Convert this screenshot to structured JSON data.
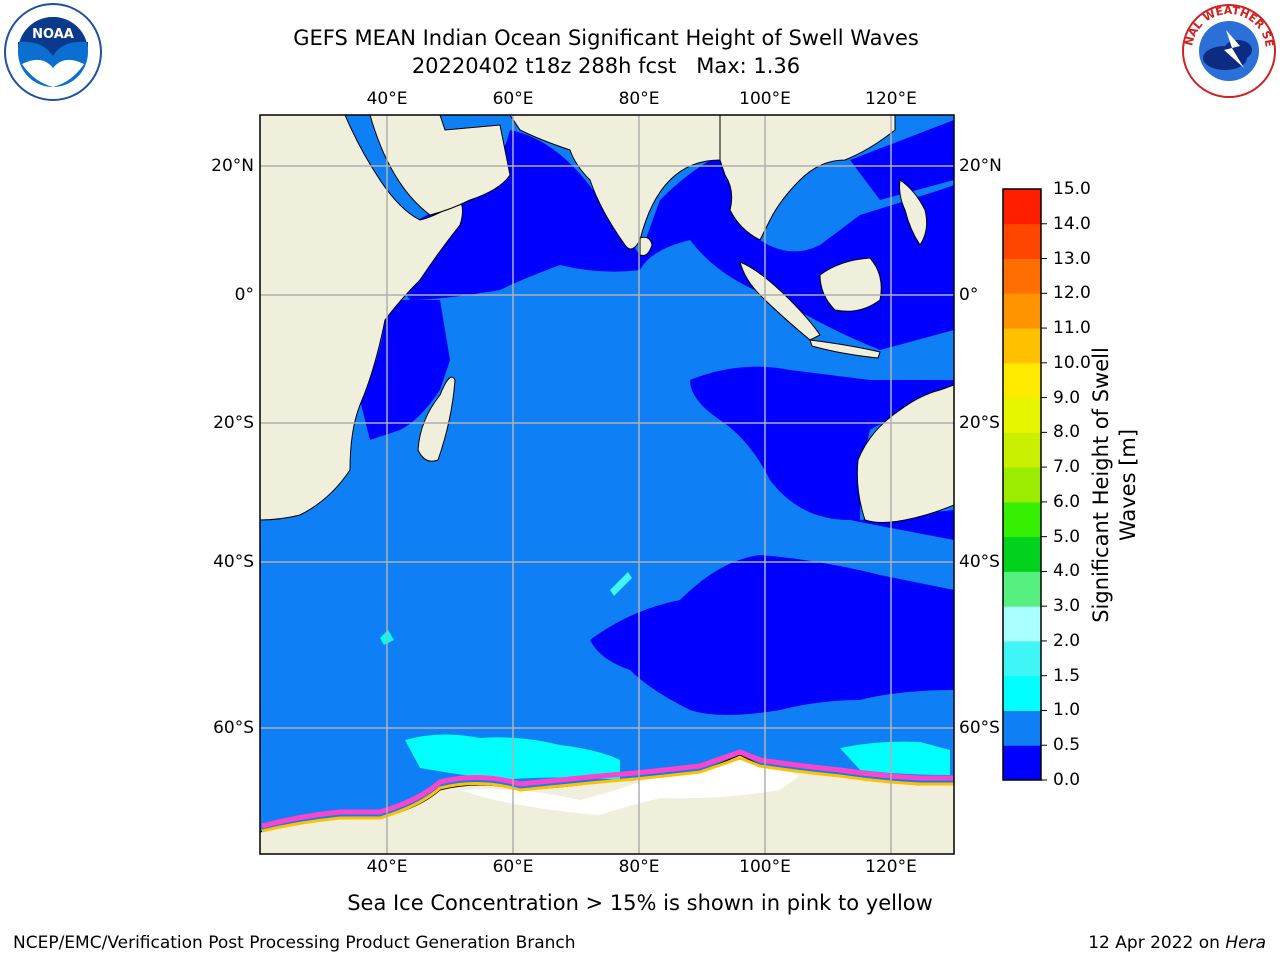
{
  "title": {
    "line1": "GEFS MEAN Indian Ocean Significant Height of Swell Waves",
    "line2": "20220402 t18z 288h fcst   Max: 1.36"
  },
  "logos": {
    "left_icon": "noaa-logo",
    "right_icon": "national-weather-service-logo",
    "noaa_text": "NOAA",
    "nws_text": "NATIONAL WEATHER SERVICE"
  },
  "map": {
    "lon_labels": [
      "40°E",
      "60°E",
      "80°E",
      "100°E",
      "120°E"
    ],
    "lat_labels": [
      "20°N",
      "0°",
      "20°S",
      "40°S",
      "60°S"
    ],
    "extent": {
      "lon": [
        20,
        130
      ],
      "lat": [
        -73,
        27
      ]
    },
    "colors": {
      "land": "#efefdc",
      "sea_ice_white": "#ffffff",
      "grid": "#b0b0b0"
    }
  },
  "colorbar": {
    "label_line1": "Significant Height of Swell",
    "label_line2": "Waves [m]",
    "ticks": [
      "0.0",
      "0.5",
      "1.0",
      "1.5",
      "2.0",
      "3.0",
      "4.0",
      "5.0",
      "6.0",
      "7.0",
      "8.0",
      "9.0",
      "10.0",
      "11.0",
      "12.0",
      "13.0",
      "14.0",
      "15.0"
    ],
    "colors": [
      "#0000ff",
      "#0f7ff5",
      "#00ffff",
      "#3ff5f5",
      "#aaffff",
      "#55f080",
      "#00d21e",
      "#37ef00",
      "#9bec00",
      "#c8f000",
      "#e6f500",
      "#ffeb00",
      "#ffc000",
      "#ff9400",
      "#ff6e00",
      "#ff4600",
      "#ff1e00"
    ]
  },
  "caption": "Sea Ice Concentration > 15% is shown in pink to yellow",
  "footer": {
    "left": "NCEP/EMC/Verification Post Processing Product Generation Branch",
    "right_date": "12 Apr 2022 on ",
    "right_host": "Hera"
  }
}
